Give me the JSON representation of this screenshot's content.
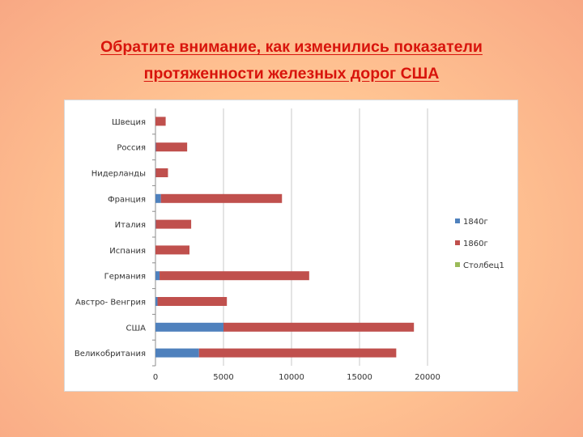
{
  "slide": {
    "title_line1": "Обратите внимание, как изменились показатели",
    "title_line2": "протяженности железных дорог  США"
  },
  "colors": {
    "title": "#d8140c",
    "series_1840": "#4f81bd",
    "series_1860": "#c0504d",
    "series_stolbets": "#9bbb59",
    "grid": "#c8c8c8"
  },
  "chart_data": {
    "type": "bar",
    "orientation": "horizontal",
    "stacked": true,
    "categories": [
      "Швеция",
      "Россия",
      "Нидерланды",
      "Франция",
      "Италия",
      "Испания",
      "Германия",
      "Австро- Венгрия",
      "США",
      "Великобритания"
    ],
    "series": [
      {
        "name": "1840г",
        "values": [
          0,
          30,
          20,
          400,
          25,
          0,
          300,
          150,
          5000,
          3200
        ]
      },
      {
        "name": "1860г",
        "values": [
          750,
          2300,
          900,
          8900,
          2600,
          2500,
          11000,
          5100,
          14000,
          14500
        ]
      },
      {
        "name": "Столбец1",
        "values": [
          0,
          0,
          0,
          0,
          0,
          0,
          0,
          0,
          0,
          0
        ]
      }
    ],
    "x_ticks": [
      "0",
      "5000",
      "10000",
      "15000",
      "20000"
    ],
    "xlim": [
      0,
      20000
    ],
    "grid": true,
    "legend_position": "right"
  }
}
